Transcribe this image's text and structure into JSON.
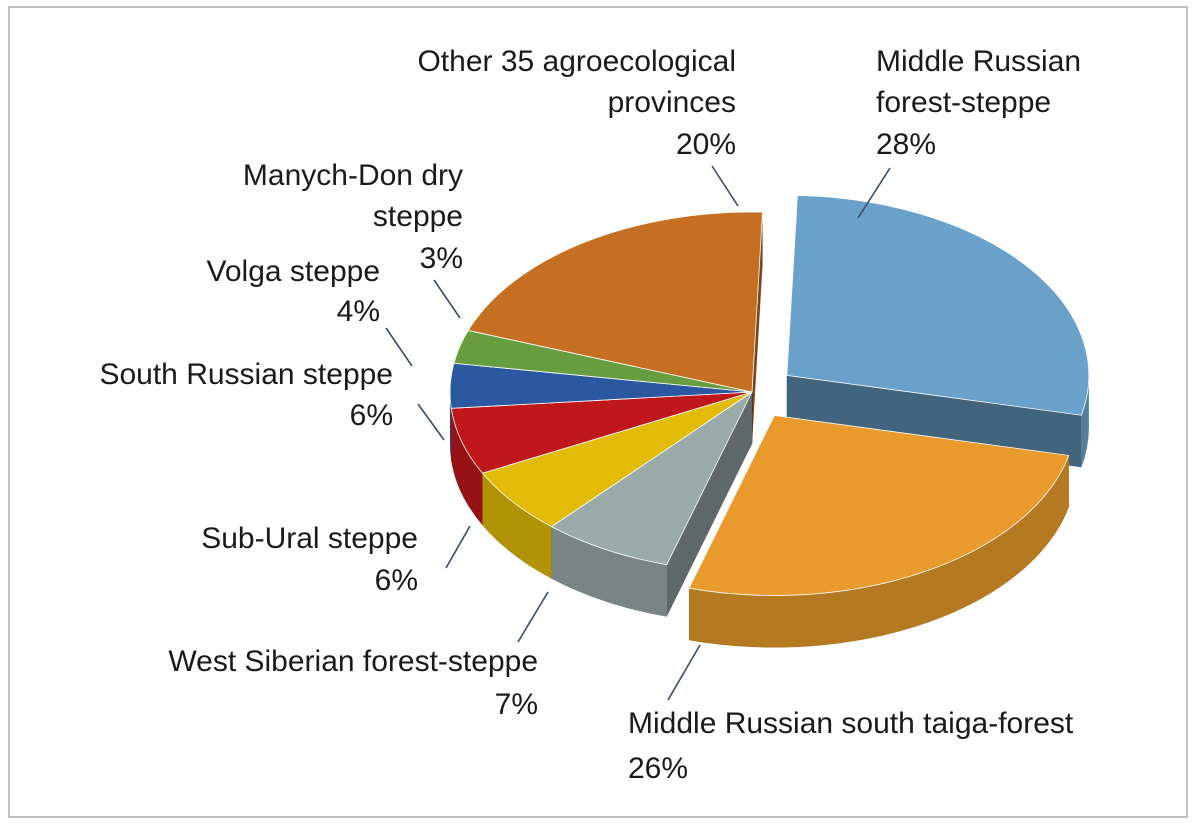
{
  "chart_data": {
    "type": "pie",
    "title": "",
    "legend": "none",
    "slices": [
      {
        "label": "Middle Russian forest-steppe",
        "value": 28,
        "display": "28%",
        "color": "#6aa1ca",
        "exploded": true
      },
      {
        "label": "Middle Russian south taiga-forest",
        "value": 26,
        "display": "26%",
        "color": "#e89b2c",
        "exploded": true
      },
      {
        "label": "West Siberian forest-steppe",
        "value": 7,
        "display": "7%",
        "color": "#9aaaa9",
        "exploded": false
      },
      {
        "label": "Sub-Ural steppe",
        "value": 6,
        "display": "6%",
        "color": "#e1bb05",
        "exploded": false
      },
      {
        "label": "South Russian steppe",
        "value": 6,
        "display": "6%",
        "color": "#c0171b",
        "exploded": false
      },
      {
        "label": "Volga steppe",
        "value": 4,
        "display": "4%",
        "color": "#2b58a0",
        "exploded": false
      },
      {
        "label": "Manych-Don dry steppe",
        "value": 3,
        "display": "3%",
        "color": "#679d3e",
        "exploded": false
      },
      {
        "label": "Other 35 agroecological provinces",
        "value": 20,
        "display": "20%",
        "color": "#c56f23",
        "exploded": false
      }
    ]
  }
}
